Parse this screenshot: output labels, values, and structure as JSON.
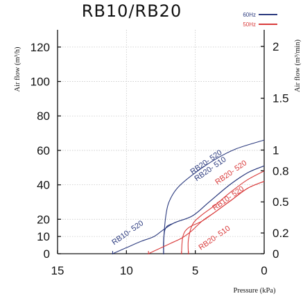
{
  "chart_data": {
    "type": "line",
    "title": "RB10/RB20",
    "xlabel": "Pressure (kPa)",
    "ylabel_left": "Air flow (m³/h)",
    "ylabel_right": "Air flow (m³/min)",
    "xlim": [
      15,
      0
    ],
    "ylim": [
      0,
      130
    ],
    "x_ticks": [
      "15",
      "10",
      "5",
      "0"
    ],
    "x_tick_values": [
      15,
      10,
      5,
      0
    ],
    "y_ticks_left": [
      "0",
      "10",
      "20",
      "40",
      "60",
      "80",
      "100",
      "120"
    ],
    "y_tick_values_left": [
      0,
      10,
      20,
      40,
      60,
      80,
      100,
      120
    ],
    "y_ticks_right": [
      "0",
      "0.2",
      "0.5",
      "0.8",
      "1",
      "1.5",
      "2"
    ],
    "y_tick_values_right": [
      0,
      0.2,
      0.5,
      0.8,
      1,
      1.5,
      2
    ],
    "grid": true,
    "legend": {
      "placement": "top-right",
      "entries": [
        {
          "name": "60Hz",
          "color": "#2b3a7e"
        },
        {
          "name": "50Hz",
          "color": "#d93a3a"
        }
      ]
    },
    "series": [
      {
        "label": "RB20- 520",
        "freq": "60Hz",
        "color": "#2b3a7e",
        "label_at": [
          5.2,
          46
        ],
        "points": [
          [
            7.3,
            0
          ],
          [
            7.3,
            8
          ],
          [
            7.1,
            24
          ],
          [
            6.8,
            32
          ],
          [
            6.2,
            39
          ],
          [
            5,
            47
          ],
          [
            3.5,
            55
          ],
          [
            2,
            61
          ],
          [
            0,
            66
          ]
        ]
      },
      {
        "label": "RB20- 510",
        "freq": "60Hz",
        "color": "#2b3a7e",
        "label_at": [
          4.9,
          42
        ],
        "points": [
          [
            7.3,
            0
          ],
          [
            7.2,
            14
          ],
          [
            6.5,
            18
          ],
          [
            5.2,
            22
          ],
          [
            4,
            30
          ],
          [
            2.5,
            40
          ],
          [
            1.2,
            47
          ],
          [
            0,
            51
          ]
        ]
      },
      {
        "label": "RB10- 520",
        "freq": "60Hz",
        "color": "#2b3a7e",
        "label_at": [
          10.9,
          5
        ],
        "points": [
          [
            11,
            0
          ],
          [
            10,
            3.5
          ],
          [
            9,
            7
          ],
          [
            8,
            10
          ],
          [
            7.3,
            14
          ],
          [
            6.5,
            18
          ],
          [
            5.2,
            22
          ],
          [
            4,
            30
          ],
          [
            2.5,
            40
          ],
          [
            1.2,
            47
          ],
          [
            0,
            51
          ]
        ]
      },
      {
        "label": "RB20- 520",
        "freq": "50Hz",
        "color": "#d93a3a",
        "label_at": [
          3.4,
          40
        ],
        "points": [
          [
            5.5,
            0
          ],
          [
            5.5,
            8
          ],
          [
            5.2,
            17
          ],
          [
            4.6,
            22
          ],
          [
            3.6,
            28
          ],
          [
            2.4,
            36
          ],
          [
            1.2,
            43
          ],
          [
            0,
            48
          ]
        ]
      },
      {
        "label": "RB10- 520",
        "freq": "50Hz",
        "color": "#d93a3a",
        "label_at": [
          3.6,
          25
        ],
        "points": [
          [
            8.4,
            0
          ],
          [
            7.6,
            3
          ],
          [
            6.8,
            6
          ],
          [
            6,
            9
          ],
          [
            5.3,
            13
          ],
          [
            4.5,
            19
          ],
          [
            3.6,
            24
          ],
          [
            2.4,
            31
          ],
          [
            1.2,
            38
          ],
          [
            0,
            42
          ]
        ]
      },
      {
        "label": "RB20- 510",
        "freq": "50Hz",
        "color": "#d93a3a",
        "label_at": [
          4.6,
          2
        ],
        "points": [
          [
            6,
            0
          ],
          [
            5.9,
            10
          ],
          [
            5.5,
            15
          ],
          [
            4.5,
            19
          ],
          [
            3.6,
            24
          ],
          [
            2.4,
            31
          ],
          [
            1.2,
            38
          ],
          [
            0,
            42
          ]
        ]
      }
    ]
  }
}
